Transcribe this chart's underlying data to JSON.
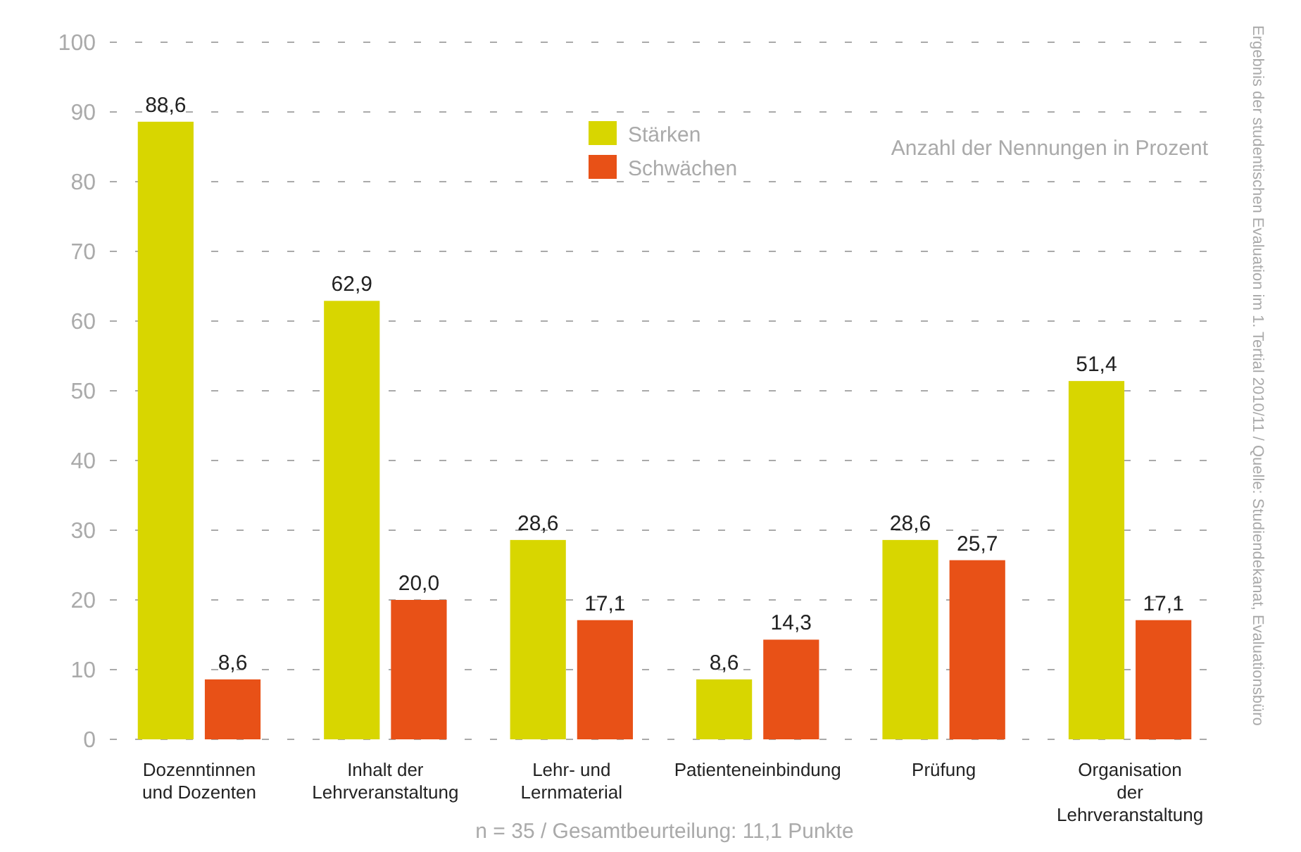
{
  "chart_data": {
    "type": "bar",
    "categories": [
      "Dozenntinnen und Dozenten",
      "Inhalt der Lehrveranstaltung",
      "Lehr- und Lernmaterial",
      "Patienteneinbindung",
      "Prüfung",
      "Organisation der Lehrveranstaltung"
    ],
    "series": [
      {
        "name": "Stärken",
        "color": "#d8d600",
        "values": [
          88.6,
          62.9,
          28.6,
          8.6,
          28.6,
          51.4
        ],
        "value_labels": [
          "88,6",
          "62,9",
          "28,6",
          "8,6",
          "28,6",
          "51,4"
        ]
      },
      {
        "name": "Schwächen",
        "color": "#e85117",
        "values": [
          8.6,
          20.0,
          17.1,
          14.3,
          25.7,
          17.1
        ],
        "value_labels": [
          "8,6",
          "20,0",
          "17,1",
          "14,3",
          "25,7",
          "17,1"
        ]
      }
    ],
    "ylim": [
      0,
      100
    ],
    "yticks": [
      0,
      10,
      20,
      30,
      40,
      50,
      60,
      70,
      80,
      90,
      100
    ],
    "grid": "y",
    "legend": "top",
    "annotations": [
      "Anzahl der Nennungen in Prozent",
      "n = 35 / Gesamtbeurteilung: 11,1 Punkte",
      "Ergebnis der studentischen Evaluation im 1. Tertial 2010/11 / Quelle: Studiendekanat, Evaluationsbüro"
    ]
  }
}
